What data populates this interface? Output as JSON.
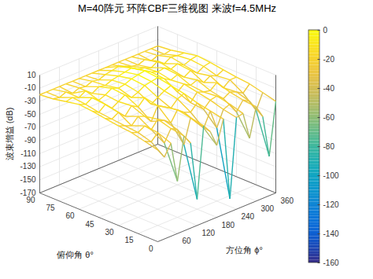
{
  "chart_data": {
    "type": "surface",
    "title": "M=40阵元 环阵CBF三维视图 来波f=4.5MHz",
    "x_label": "方位角 ϕ°",
    "y_label": "俯仰角 θ°",
    "z_label": "波束增益 (dB)",
    "x": [
      0,
      20,
      40,
      60,
      80,
      100,
      120,
      140,
      160,
      180,
      200,
      220,
      240,
      260,
      280,
      300,
      320,
      340,
      360
    ],
    "y": [
      0,
      10,
      20,
      30,
      40,
      50,
      60,
      70,
      80,
      90
    ],
    "z": [
      [
        -30,
        -45,
        -28,
        -90,
        -25,
        -40,
        -130,
        -22,
        -35,
        -60,
        -24,
        -150,
        -30,
        -28,
        -70,
        -26,
        -45,
        -110,
        -30
      ],
      [
        -25,
        -30,
        -20,
        -40,
        -22,
        -28,
        -55,
        -18,
        -30,
        -42,
        -20,
        -50,
        -26,
        -22,
        -38,
        -24,
        -30,
        -48,
        -25
      ],
      [
        -20,
        -24,
        -18,
        -28,
        -16,
        -22,
        -30,
        -14,
        -22,
        -26,
        -16,
        -30,
        -20,
        -18,
        -26,
        -20,
        -24,
        -30,
        -20
      ],
      [
        -18,
        -22,
        -26,
        -16,
        -20,
        -32,
        -12,
        -18,
        -24,
        -14,
        -10,
        -28,
        -16,
        -20,
        -22,
        -14,
        -26,
        -18,
        -18
      ],
      [
        -15,
        -20,
        -14,
        -24,
        -12,
        -18,
        -8,
        -22,
        -16,
        -10,
        -6,
        -20,
        -12,
        -18,
        -14,
        -22,
        -16,
        -20,
        -15
      ],
      [
        -12,
        -18,
        -10,
        -20,
        -14,
        -8,
        -16,
        -12,
        -6,
        -4,
        -2,
        -8,
        -14,
        -10,
        -18,
        -12,
        -20,
        -14,
        -12
      ],
      [
        -10,
        -14,
        -8,
        -16,
        -12,
        -6,
        -10,
        -8,
        -4,
        -2,
        0,
        -6,
        -10,
        -8,
        -14,
        -10,
        -16,
        -12,
        -10
      ],
      [
        -14,
        -12,
        -16,
        -10,
        -18,
        -12,
        -14,
        -10,
        -8,
        -6,
        -4,
        -10,
        -12,
        -16,
        -10,
        -18,
        -12,
        -14,
        -14
      ],
      [
        -18,
        -20,
        -16,
        -22,
        -18,
        -20,
        -16,
        -18,
        -14,
        -12,
        -10,
        -14,
        -18,
        -20,
        -16,
        -22,
        -18,
        -20,
        -18
      ],
      [
        -20,
        -20,
        -20,
        -20,
        -20,
        -20,
        -20,
        -20,
        -20,
        -20,
        -20,
        -20,
        -20,
        -20,
        -20,
        -20,
        -20,
        -20,
        -20
      ]
    ],
    "xlim": [
      0,
      360
    ],
    "xticks": [
      60,
      120,
      180,
      240,
      300,
      360
    ],
    "ylim": [
      0,
      90
    ],
    "yticks": [
      0,
      15,
      30,
      45,
      60,
      75,
      90
    ],
    "zlim": [
      -170,
      10
    ],
    "zticks": [
      10,
      -10,
      -30,
      -50,
      -70,
      -90,
      -110,
      -130,
      -150,
      -170
    ],
    "colorbar": {
      "lim": [
        -160,
        0
      ],
      "ticks": [
        0,
        -20,
        -40,
        -60,
        -80,
        -100,
        -120,
        -140,
        -160
      ]
    },
    "grid": true
  }
}
